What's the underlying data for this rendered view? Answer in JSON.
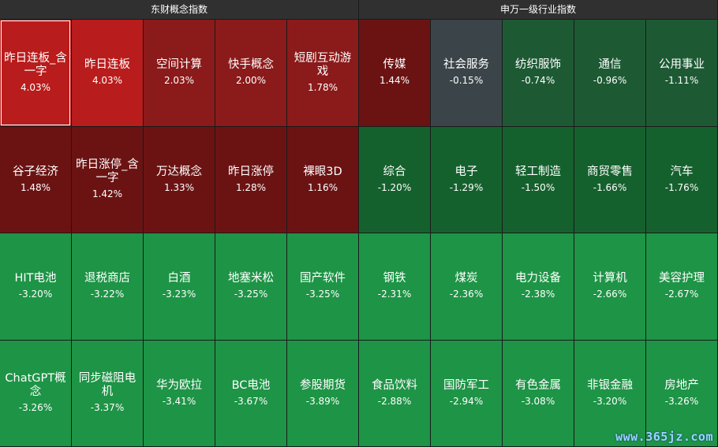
{
  "watermark": "www.365jz.com",
  "colors": {
    "up_strong": "#b91c1c",
    "up_mid": "#8b1a1a",
    "up_weak": "#6b1313",
    "neutral": "#3b4549",
    "down_weak": "#1d5a34",
    "down_mid": "#15612d",
    "down_strong": "#1e9446"
  },
  "chart_data": [
    {
      "type": "heatmap",
      "title": "东财概念指数",
      "unit": "%",
      "rows": 4,
      "cols": 5,
      "cells": [
        {
          "name": "昨日连板_含一字",
          "change": 4.03,
          "label": "4.03%"
        },
        {
          "name": "昨日连板",
          "change": 4.03,
          "label": "4.03%"
        },
        {
          "name": "空间计算",
          "change": 2.03,
          "label": "2.03%"
        },
        {
          "name": "快手概念",
          "change": 2.0,
          "label": "2.00%"
        },
        {
          "name": "短剧互动游戏",
          "change": 1.78,
          "label": "1.78%"
        },
        {
          "name": "谷子经济",
          "change": 1.48,
          "label": "1.48%"
        },
        {
          "name": "昨日涨停_含一字",
          "change": 1.42,
          "label": "1.42%"
        },
        {
          "name": "万达概念",
          "change": 1.33,
          "label": "1.33%"
        },
        {
          "name": "昨日涨停",
          "change": 1.28,
          "label": "1.28%"
        },
        {
          "name": "裸眼3D",
          "change": 1.16,
          "label": "1.16%"
        },
        {
          "name": "HIT电池",
          "change": -3.2,
          "label": "-3.20%"
        },
        {
          "name": "退税商店",
          "change": -3.22,
          "label": "-3.22%"
        },
        {
          "name": "白酒",
          "change": -3.23,
          "label": "-3.23%"
        },
        {
          "name": "地塞米松",
          "change": -3.25,
          "label": "-3.25%"
        },
        {
          "name": "国产软件",
          "change": -3.25,
          "label": "-3.25%"
        },
        {
          "name": "ChatGPT概念",
          "change": -3.26,
          "label": "-3.26%"
        },
        {
          "name": "同步磁阻电机",
          "change": -3.37,
          "label": "-3.37%"
        },
        {
          "name": "华为欧拉",
          "change": -3.41,
          "label": "-3.41%"
        },
        {
          "name": "BC电池",
          "change": -3.67,
          "label": "-3.67%"
        },
        {
          "name": "参股期货",
          "change": -3.89,
          "label": "-3.89%"
        }
      ]
    },
    {
      "type": "heatmap",
      "title": "申万一级行业指数",
      "unit": "%",
      "rows": 4,
      "cols": 5,
      "cells": [
        {
          "name": "传媒",
          "change": 1.44,
          "label": "1.44%"
        },
        {
          "name": "社会服务",
          "change": -0.15,
          "label": "-0.15%"
        },
        {
          "name": "纺织服饰",
          "change": -0.74,
          "label": "-0.74%"
        },
        {
          "name": "通信",
          "change": -0.96,
          "label": "-0.96%"
        },
        {
          "name": "公用事业",
          "change": -1.11,
          "label": "-1.11%"
        },
        {
          "name": "综合",
          "change": -1.2,
          "label": "-1.20%"
        },
        {
          "name": "电子",
          "change": -1.29,
          "label": "-1.29%"
        },
        {
          "name": "轻工制造",
          "change": -1.5,
          "label": "-1.50%"
        },
        {
          "name": "商贸零售",
          "change": -1.66,
          "label": "-1.66%"
        },
        {
          "name": "汽车",
          "change": -1.76,
          "label": "-1.76%"
        },
        {
          "name": "钢铁",
          "change": -2.31,
          "label": "-2.31%"
        },
        {
          "name": "煤炭",
          "change": -2.36,
          "label": "-2.36%"
        },
        {
          "name": "电力设备",
          "change": -2.38,
          "label": "-2.38%"
        },
        {
          "name": "计算机",
          "change": -2.66,
          "label": "-2.66%"
        },
        {
          "name": "美容护理",
          "change": -2.67,
          "label": "-2.67%"
        },
        {
          "name": "食品饮料",
          "change": -2.88,
          "label": "-2.88%"
        },
        {
          "name": "国防军工",
          "change": -2.94,
          "label": "-2.94%"
        },
        {
          "name": "有色金属",
          "change": -3.08,
          "label": "-3.08%"
        },
        {
          "name": "非银金融",
          "change": -3.2,
          "label": "-3.20%"
        },
        {
          "name": "房地产",
          "change": -3.26,
          "label": "-3.26%"
        }
      ]
    }
  ]
}
